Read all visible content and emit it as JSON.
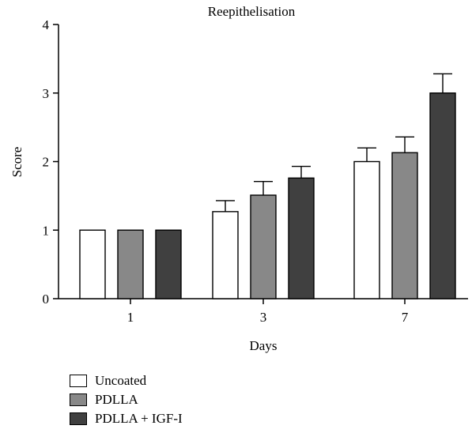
{
  "chart_data": {
    "type": "bar",
    "title": "Reepithelisation",
    "xlabel": "Days",
    "ylabel": "Score",
    "categories": [
      "1",
      "3",
      "7"
    ],
    "ylim": [
      0,
      4
    ],
    "yticks": [
      "0",
      "1",
      "2",
      "3",
      "4"
    ],
    "series": [
      {
        "name": "Uncoated",
        "values": [
          1.0,
          1.27,
          2.0
        ],
        "errors": [
          0,
          0.16,
          0.2
        ],
        "color": "#ffffff"
      },
      {
        "name": "PDLLA",
        "values": [
          1.0,
          1.51,
          2.13
        ],
        "errors": [
          0,
          0.2,
          0.23
        ],
        "color": "#888888"
      },
      {
        "name": "PDLLA + IGF-I",
        "values": [
          1.0,
          1.76,
          3.0
        ],
        "errors": [
          0,
          0.17,
          0.28
        ],
        "color": "#404040"
      }
    ],
    "grid": false,
    "legend": "bottom-left"
  }
}
